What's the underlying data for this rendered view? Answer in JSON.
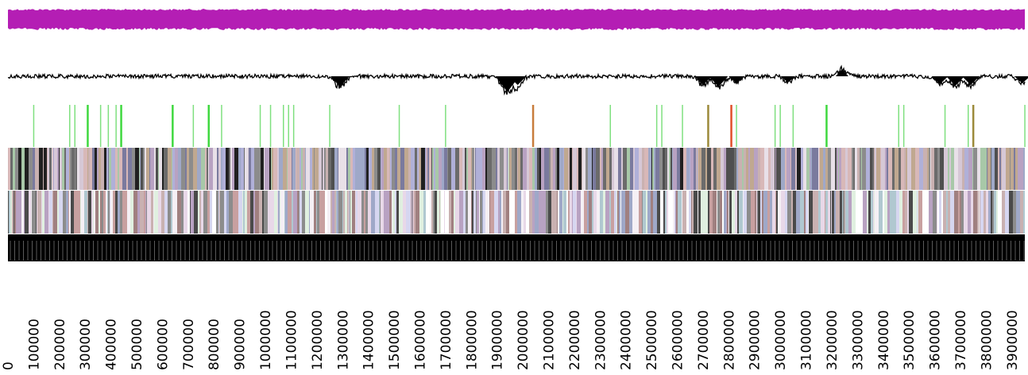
{
  "genome": {
    "start": 0,
    "end": 3950000
  },
  "tracks": [
    {
      "id": "gc-skew-band",
      "color": "#b41eb4"
    },
    {
      "id": "gc-content-plot",
      "color": "#000000"
    },
    {
      "id": "feature-markers",
      "colors": [
        "#7fe07f",
        "#3fd83f",
        "#c87c3c",
        "#e0502a",
        "#9c8a3a"
      ]
    },
    {
      "id": "gene-stripes-forward",
      "colors": [
        "#8c8c8c",
        "#b8a2c2",
        "#7a7a9e",
        "#c9b1b1",
        "#a8c8a8",
        "#4f4f4f",
        "#d6c8d6",
        "#9fa8c8",
        "#c0a890",
        "#e8e0e8",
        "#6b6b6b",
        "#b0b0d8",
        "#d8b8b8",
        "#202020"
      ]
    },
    {
      "id": "gene-stripes-reverse",
      "colors": [
        "#ffffff",
        "#b8a2c2",
        "#c9b1b1",
        "#9fa8c8",
        "#e8d8e8",
        "#a08080",
        "#d6d6f0",
        "#c8a0a0",
        "#e0f0e0",
        "#8c8c8c",
        "#f5f0f5",
        "#4a4a4a",
        "#b0c8d0"
      ]
    },
    {
      "id": "scale-ruler",
      "color": "#000000"
    }
  ],
  "axis": {
    "ticks": [
      0,
      100000,
      200000,
      300000,
      400000,
      500000,
      600000,
      700000,
      800000,
      900000,
      1000000,
      1100000,
      1200000,
      1300000,
      1400000,
      1500000,
      1600000,
      1700000,
      1800000,
      1900000,
      2000000,
      2100000,
      2200000,
      2300000,
      2400000,
      2500000,
      2600000,
      2700000,
      2800000,
      2900000,
      3000000,
      3100000,
      3200000,
      3300000,
      3400000,
      3500000,
      3600000,
      3700000,
      3800000,
      3900000
    ]
  },
  "features": [
    {
      "pos": 100000,
      "color": "#7fe07f"
    },
    {
      "pos": 240000,
      "color": "#7fe07f"
    },
    {
      "pos": 260000,
      "color": "#7fe07f"
    },
    {
      "pos": 310000,
      "color": "#3fd83f"
    },
    {
      "pos": 360000,
      "color": "#7fe07f"
    },
    {
      "pos": 390000,
      "color": "#7fe07f"
    },
    {
      "pos": 420000,
      "color": "#7fe07f"
    },
    {
      "pos": 440000,
      "color": "#3fd83f"
    },
    {
      "pos": 640000,
      "color": "#3fd83f"
    },
    {
      "pos": 720000,
      "color": "#7fe07f"
    },
    {
      "pos": 780000,
      "color": "#3fd83f"
    },
    {
      "pos": 830000,
      "color": "#7fe07f"
    },
    {
      "pos": 980000,
      "color": "#7fe07f"
    },
    {
      "pos": 1020000,
      "color": "#7fe07f"
    },
    {
      "pos": 1070000,
      "color": "#7fe07f"
    },
    {
      "pos": 1090000,
      "color": "#7fe07f"
    },
    {
      "pos": 1110000,
      "color": "#7fe07f"
    },
    {
      "pos": 1250000,
      "color": "#7fe07f"
    },
    {
      "pos": 1520000,
      "color": "#7fe07f"
    },
    {
      "pos": 1700000,
      "color": "#7fe07f"
    },
    {
      "pos": 2040000,
      "color": "#c87c3c"
    },
    {
      "pos": 2340000,
      "color": "#7fe07f"
    },
    {
      "pos": 2520000,
      "color": "#7fe07f"
    },
    {
      "pos": 2540000,
      "color": "#7fe07f"
    },
    {
      "pos": 2620000,
      "color": "#7fe07f"
    },
    {
      "pos": 2720000,
      "color": "#9c8a3a"
    },
    {
      "pos": 2810000,
      "color": "#e0502a"
    },
    {
      "pos": 2830000,
      "color": "#7fe07f"
    },
    {
      "pos": 2980000,
      "color": "#7fe07f"
    },
    {
      "pos": 3000000,
      "color": "#7fe07f"
    },
    {
      "pos": 3050000,
      "color": "#7fe07f"
    },
    {
      "pos": 3180000,
      "color": "#3fd83f"
    },
    {
      "pos": 3460000,
      "color": "#7fe07f"
    },
    {
      "pos": 3480000,
      "color": "#7fe07f"
    },
    {
      "pos": 3640000,
      "color": "#7fe07f"
    },
    {
      "pos": 3730000,
      "color": "#7fe07f"
    },
    {
      "pos": 3750000,
      "color": "#9c8a3a"
    },
    {
      "pos": 3950000,
      "color": "#7fe07f"
    }
  ],
  "gc_dips": [
    {
      "pos": 1290000,
      "depth": 0.6
    },
    {
      "pos": 1940000,
      "depth": 0.9
    },
    {
      "pos": 1980000,
      "depth": 0.5
    },
    {
      "pos": 2700000,
      "depth": 0.5
    },
    {
      "pos": 2760000,
      "depth": 0.6
    },
    {
      "pos": 2830000,
      "depth": 0.4
    },
    {
      "pos": 3030000,
      "depth": 0.35
    },
    {
      "pos": 3620000,
      "depth": 0.45
    },
    {
      "pos": 3680000,
      "depth": 0.55
    },
    {
      "pos": 3740000,
      "depth": 0.5
    },
    {
      "pos": 3940000,
      "depth": 0.4
    }
  ],
  "gc_peaks": [
    {
      "pos": 3240000,
      "height": 0.45
    },
    {
      "pos": 3990000,
      "height": 0.5
    }
  ]
}
